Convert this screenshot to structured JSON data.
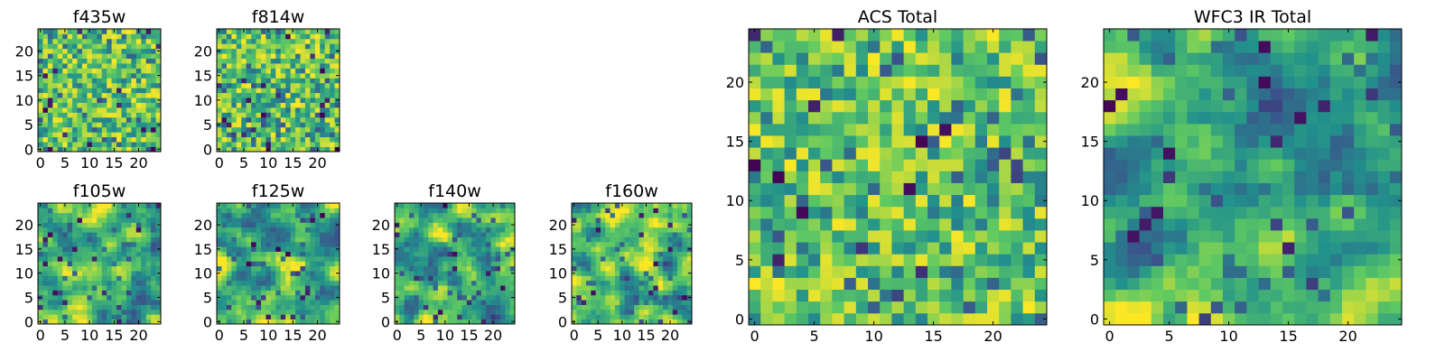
{
  "colormap": [
    "#440154",
    "#3b528b",
    "#21918c",
    "#5ec962",
    "#fde725"
  ],
  "chart_data": [
    {
      "type": "heatmap",
      "title": "f435w",
      "rows": 25,
      "cols": 25,
      "xlim": [
        -0.5,
        24.5
      ],
      "ylim": [
        -0.5,
        24.5
      ],
      "xticks": [
        0,
        5,
        10,
        15,
        20
      ],
      "yticks": [
        0,
        5,
        10,
        15,
        20
      ],
      "texture": "noise",
      "low_frac": 0.03,
      "grid": false
    },
    {
      "type": "heatmap",
      "title": "f814w",
      "rows": 25,
      "cols": 25,
      "xlim": [
        -0.5,
        24.5
      ],
      "ylim": [
        -0.5,
        24.5
      ],
      "xticks": [
        0,
        5,
        10,
        15,
        20
      ],
      "yticks": [
        0,
        5,
        10,
        15,
        20
      ],
      "texture": "noise",
      "low_frac": 0.04,
      "grid": false
    },
    {
      "type": "heatmap",
      "title": "f105w",
      "rows": 25,
      "cols": 25,
      "xlim": [
        -0.5,
        24.5
      ],
      "ylim": [
        -0.5,
        24.5
      ],
      "xticks": [
        0,
        5,
        10,
        15,
        20
      ],
      "yticks": [
        0,
        5,
        10,
        15,
        20
      ],
      "texture": "smooth",
      "low_frac": 0.03,
      "grid": false
    },
    {
      "type": "heatmap",
      "title": "f125w",
      "rows": 25,
      "cols": 25,
      "xlim": [
        -0.5,
        24.5
      ],
      "ylim": [
        -0.5,
        24.5
      ],
      "xticks": [
        0,
        5,
        10,
        15,
        20
      ],
      "yticks": [
        0,
        5,
        10,
        15,
        20
      ],
      "texture": "smooth",
      "low_frac": 0.03,
      "grid": false
    },
    {
      "type": "heatmap",
      "title": "f140w",
      "rows": 25,
      "cols": 25,
      "xlim": [
        -0.5,
        24.5
      ],
      "ylim": [
        -0.5,
        24.5
      ],
      "xticks": [
        0,
        5,
        10,
        15,
        20
      ],
      "yticks": [
        0,
        5,
        10,
        15,
        20
      ],
      "texture": "smooth",
      "low_frac": 0.03,
      "grid": false
    },
    {
      "type": "heatmap",
      "title": "f160w",
      "rows": 25,
      "cols": 25,
      "xlim": [
        -0.5,
        24.5
      ],
      "ylim": [
        -0.5,
        24.5
      ],
      "xticks": [
        0,
        5,
        10,
        15,
        20
      ],
      "yticks": [
        0,
        5,
        10,
        15,
        20
      ],
      "texture": "smooth",
      "low_frac": 0.03,
      "grid": false
    },
    {
      "type": "heatmap",
      "title": "ACS Total",
      "rows": 25,
      "cols": 25,
      "xlim": [
        -0.5,
        24.5
      ],
      "ylim": [
        -0.5,
        24.5
      ],
      "xticks": [
        0,
        5,
        10,
        15,
        20
      ],
      "yticks": [
        0,
        5,
        10,
        15,
        20
      ],
      "texture": "noise",
      "low_frac": 0.025,
      "grid": false
    },
    {
      "type": "heatmap",
      "title": "WFC3 IR Total",
      "rows": 25,
      "cols": 25,
      "xlim": [
        -0.5,
        24.5
      ],
      "ylim": [
        -0.5,
        24.5
      ],
      "xticks": [
        0,
        5,
        10,
        15,
        20
      ],
      "yticks": [
        0,
        5,
        10,
        15,
        20
      ],
      "texture": "smooth",
      "low_frac": 0.03,
      "grid": false
    }
  ]
}
